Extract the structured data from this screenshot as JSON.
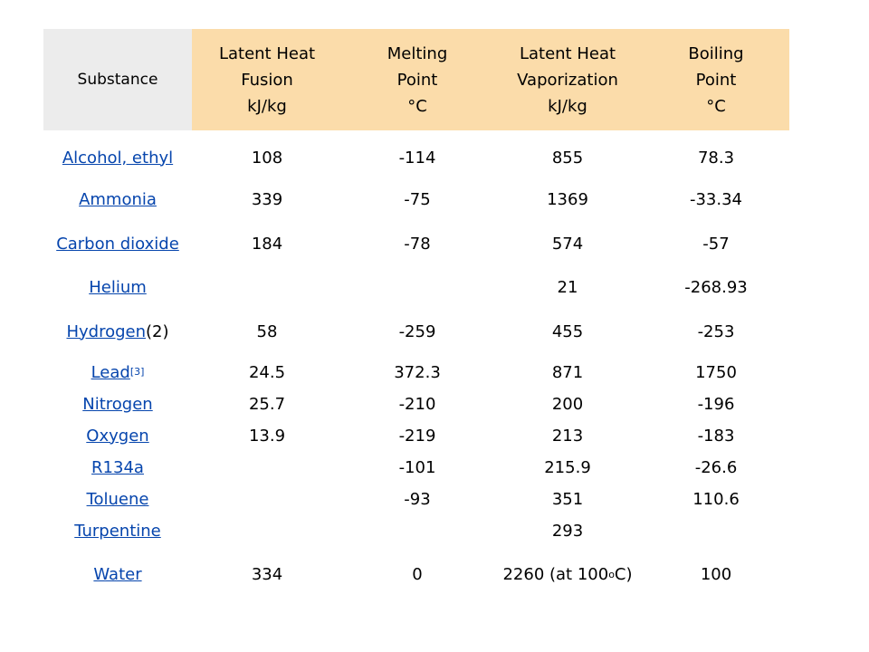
{
  "headers": {
    "substance": "Substance",
    "fusion": "Latent Heat\nFusion\nkJ/kg",
    "melting": "Melting\nPoint\n°C",
    "vaporization": "Latent Heat\nVaporization\nkJ/kg",
    "boiling": "Boiling\nPoint\n°C"
  },
  "colors": {
    "header_gray": "#ececec",
    "header_peach": "#fbdcaa",
    "link_blue": "#0645ad"
  },
  "rows": [
    {
      "substance": "Alcohol, ethyl",
      "suffix": "",
      "ref": "",
      "fusion": "108",
      "melting": "-114",
      "vaporization": "855",
      "boiling": "78.3"
    },
    {
      "substance": "Ammonia",
      "suffix": "",
      "ref": "",
      "fusion": "339",
      "melting": "-75",
      "vaporization": "1369",
      "boiling": "-33.34"
    },
    {
      "substance": "Carbon dioxide",
      "suffix": "",
      "ref": "",
      "fusion": "184",
      "melting": "-78",
      "vaporization": "574",
      "boiling": "-57"
    },
    {
      "substance": "Helium",
      "suffix": "",
      "ref": "",
      "fusion": "",
      "melting": "",
      "vaporization": "21",
      "boiling": "-268.93"
    },
    {
      "substance": "Hydrogen",
      "suffix": "(2)",
      "ref": "",
      "fusion": "58",
      "melting": "-259",
      "vaporization": "455",
      "boiling": "-253"
    },
    {
      "substance": "Lead",
      "suffix": "",
      "ref": "[3]",
      "fusion": "24.5",
      "melting": "372.3",
      "vaporization": "871",
      "boiling": "1750"
    },
    {
      "substance": "Nitrogen",
      "suffix": "",
      "ref": "",
      "fusion": "25.7",
      "melting": "-210",
      "vaporization": "200",
      "boiling": "-196"
    },
    {
      "substance": "Oxygen",
      "suffix": "",
      "ref": "",
      "fusion": "13.9",
      "melting": "-219",
      "vaporization": "213",
      "boiling": "-183"
    },
    {
      "substance": "R134a",
      "suffix": "",
      "ref": "",
      "fusion": "",
      "melting": "-101",
      "vaporization": "215.9",
      "boiling": "-26.6"
    },
    {
      "substance": "Toluene",
      "suffix": "",
      "ref": "",
      "fusion": "",
      "melting": "-93",
      "vaporization": "351",
      "boiling": "110.6"
    },
    {
      "substance": "Turpentine",
      "suffix": "",
      "ref": "",
      "fusion": "",
      "melting": "",
      "vaporization": "293",
      "boiling": ""
    },
    {
      "substance": "Water",
      "suffix": "",
      "ref": "",
      "fusion": "334",
      "melting": "0",
      "vaporization_prefix": "2260 (at 100",
      "vaporization_sup": "o",
      "vaporization_suffix": "C)",
      "boiling": "100"
    }
  ]
}
